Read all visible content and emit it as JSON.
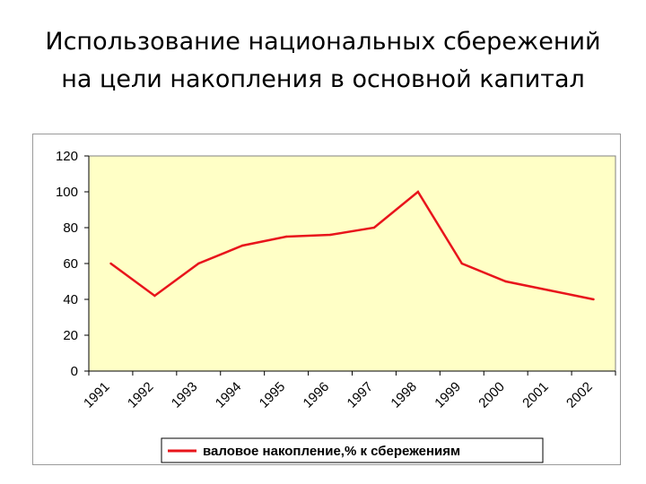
{
  "slide": {
    "title": "Использование национальных сбережений на цели накопления в основной капитал"
  },
  "chart_data": {
    "type": "line",
    "title": "",
    "xlabel": "",
    "ylabel": "",
    "categories": [
      "1991",
      "1992",
      "1993",
      "1994",
      "1995",
      "1996",
      "1997",
      "1998",
      "1999",
      "2000",
      "2001",
      "2002"
    ],
    "series": [
      {
        "name": "валовое накопление,% к сбережениям",
        "color": "#e8141b",
        "values": [
          60,
          42,
          60,
          70,
          75,
          76,
          80,
          100,
          60,
          50,
          45,
          40
        ]
      }
    ],
    "ylim": [
      0,
      120
    ],
    "yticks": [
      0,
      20,
      40,
      60,
      80,
      100,
      120
    ],
    "grid": false,
    "plot_background": "#ffffc6",
    "legend_position": "bottom"
  }
}
